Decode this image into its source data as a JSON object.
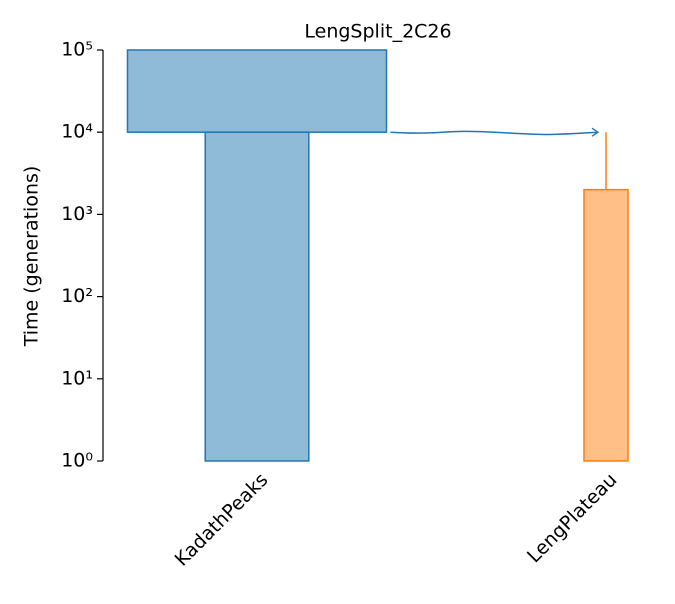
{
  "chart_data": {
    "type": "demes",
    "title": "LengSplit_2C26",
    "y_label": "Time (generations)",
    "log_y": true,
    "ylim": [
      1,
      100000
    ],
    "yticks": [
      {
        "value": 1,
        "label": "10⁰"
      },
      {
        "value": 10,
        "label": "10¹"
      },
      {
        "value": 100,
        "label": "10²"
      },
      {
        "value": 1000,
        "label": "10³"
      },
      {
        "value": 10000,
        "label": "10⁴"
      },
      {
        "value": 100000,
        "label": "10⁵"
      }
    ],
    "demes": [
      {
        "name": "KadathPeaks",
        "color": "#1f77b4",
        "epochs": [
          {
            "start": 100000,
            "end": 10000,
            "size": 10000
          },
          {
            "start": 10000,
            "end": 0,
            "size": 4000
          }
        ]
      },
      {
        "name": "LengPlateau",
        "color": "#ff7f0e",
        "epochs": [
          {
            "start": 10000,
            "end": 2000,
            "size": 40
          },
          {
            "start": 2000,
            "end": 0,
            "size": 1700
          }
        ]
      }
    ],
    "pulses": [
      {
        "source": "KadathPeaks",
        "dest": "LengPlateau",
        "time": 10000
      }
    ]
  }
}
